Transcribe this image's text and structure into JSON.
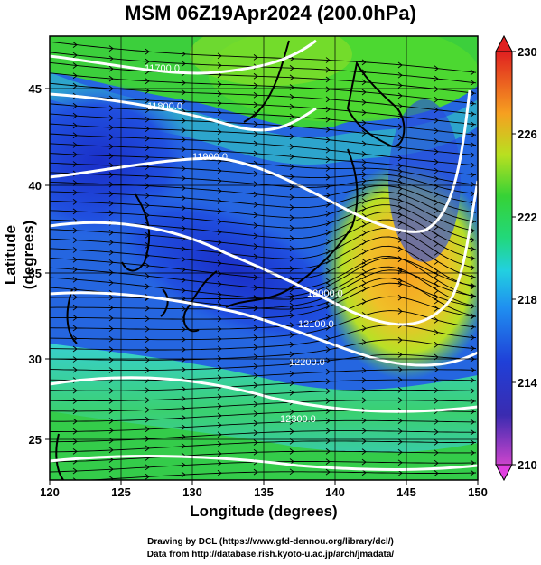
{
  "title": "MSM 06Z19Apr2024 (200.0hPa)",
  "map": {
    "xlabel": "Longitude (degrees)",
    "ylabel": "Latitude  (degrees)",
    "lon_range": [
      120,
      150
    ],
    "lat_range": [
      22.4,
      47.9
    ],
    "lon_ticks": [
      "120",
      "125",
      "130",
      "135",
      "140",
      "145",
      "150"
    ],
    "lat_ticks": [
      "25",
      "30",
      "35",
      "40",
      "45"
    ],
    "contour_labels": [
      "11700.0",
      "11800.0",
      "11900.0",
      "12000.0",
      "12100.0",
      "12200.0",
      "12300.0"
    ],
    "colors": {
      "ocean_blue": "#1f3fd0",
      "jet_green": "#3cd23c",
      "ridge_orange": "#f7a020",
      "contour": "#ffffff",
      "coast": "#000000",
      "grid": "#000000"
    }
  },
  "colorbar": {
    "ticks": [
      "230",
      "226",
      "222",
      "218",
      "214",
      "210"
    ],
    "min": 210,
    "max": 230
  },
  "credits": {
    "line1": "Drawing by DCL (https://www.gfd-dennou.org/library/dcl/)",
    "line2": "Data from http://database.rish.kyoto-u.ac.jp/arch/jmadata/"
  }
}
